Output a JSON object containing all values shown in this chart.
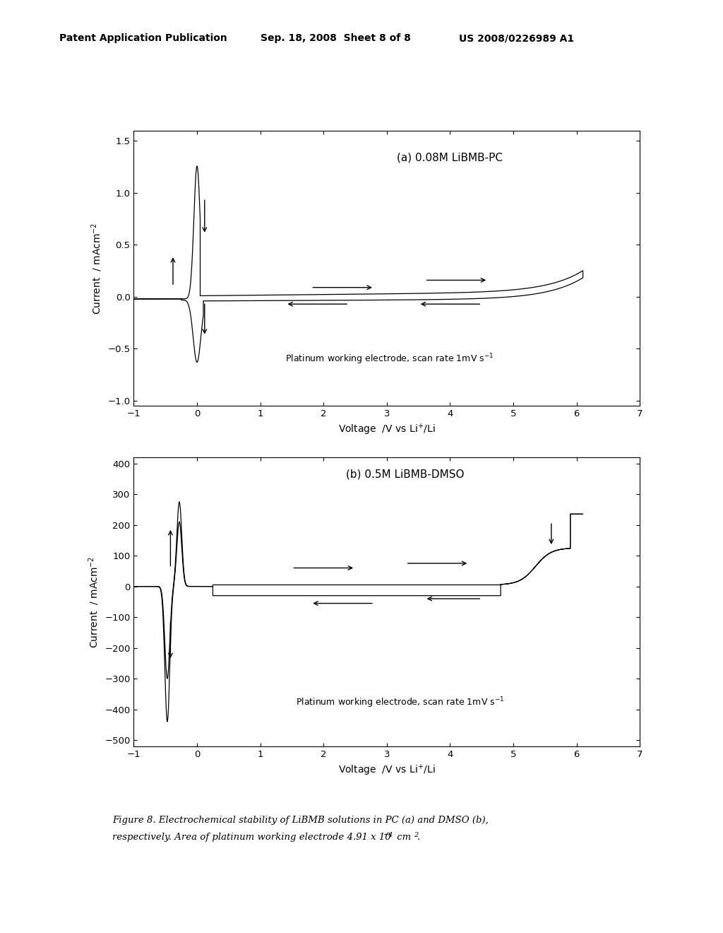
{
  "header_left": "Patent Application Publication",
  "header_center": "Sep. 18, 2008  Sheet 8 of 8",
  "header_right": "US 2008/0226989 A1",
  "plot_a_title": "(a) 0.08M LiBMB-PC",
  "plot_b_title": "(b) 0.5M LiBMB-DMSO",
  "xlabel": "Voltage  /V vs Li",
  "ylabel": "Current  / mAcm",
  "plot_a_ylim": [
    -1.05,
    1.6
  ],
  "plot_b_ylim": [
    -520,
    420
  ],
  "xlim": [
    -1,
    7
  ],
  "plot_a_yticks": [
    -1.0,
    -0.5,
    0.0,
    0.5,
    1.0,
    1.5
  ],
  "plot_b_yticks": [
    -500,
    -400,
    -300,
    -200,
    -100,
    0,
    100,
    200,
    300,
    400
  ],
  "xticks": [
    -1,
    0,
    1,
    2,
    3,
    4,
    5,
    6,
    7
  ],
  "annotation_a": "Platinum working electrode, scan rate 1mV s",
  "annotation_b": "Platinum working electrode, scan rate 1mV s",
  "figure_caption_line1": "Figure 8. Electrochemical stability of LiBMB solutions in PC (a) and DMSO (b),",
  "figure_caption_line2": "respectively. Area of platinum working electrode 4.91 x 10",
  "background_color": "#ffffff",
  "line_color": "#000000"
}
